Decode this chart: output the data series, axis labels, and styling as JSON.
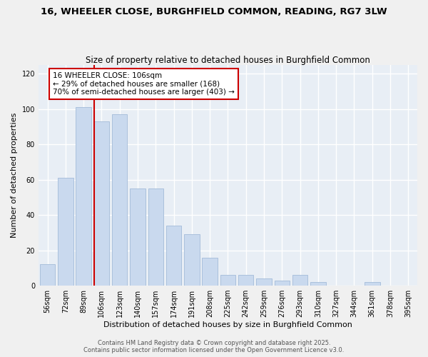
{
  "title": "16, WHEELER CLOSE, BURGHFIELD COMMON, READING, RG7 3LW",
  "subtitle": "Size of property relative to detached houses in Burghfield Common",
  "xlabel": "Distribution of detached houses by size in Burghfield Common",
  "ylabel": "Number of detached properties",
  "bar_color": "#c9d9ee",
  "bar_edge_color": "#aac0dc",
  "background_color": "#e8eef5",
  "fig_background_color": "#f0f0f0",
  "grid_color": "#ffffff",
  "categories": [
    "56sqm",
    "72sqm",
    "89sqm",
    "106sqm",
    "123sqm",
    "140sqm",
    "157sqm",
    "174sqm",
    "191sqm",
    "208sqm",
    "225sqm",
    "242sqm",
    "259sqm",
    "276sqm",
    "293sqm",
    "310sqm",
    "327sqm",
    "344sqm",
    "361sqm",
    "378sqm",
    "395sqm"
  ],
  "values": [
    12,
    61,
    101,
    93,
    97,
    55,
    55,
    34,
    29,
    16,
    6,
    6,
    4,
    3,
    6,
    2,
    0,
    0,
    2,
    0,
    0
  ],
  "marker_index": 3,
  "marker_color": "#cc0000",
  "annotation_line1": "16 WHEELER CLOSE: 106sqm",
  "annotation_line2": "← 29% of detached houses are smaller (168)",
  "annotation_line3": "70% of semi-detached houses are larger (403) →",
  "annotation_box_color": "#ffffff",
  "annotation_box_edge_color": "#cc0000",
  "ylim": [
    0,
    125
  ],
  "yticks": [
    0,
    20,
    40,
    60,
    80,
    100,
    120
  ],
  "footer_line1": "Contains HM Land Registry data © Crown copyright and database right 2025.",
  "footer_line2": "Contains public sector information licensed under the Open Government Licence v3.0.",
  "title_fontsize": 9.5,
  "subtitle_fontsize": 8.5,
  "axis_label_fontsize": 8,
  "tick_fontsize": 7,
  "annotation_fontsize": 7.5,
  "footer_fontsize": 6
}
